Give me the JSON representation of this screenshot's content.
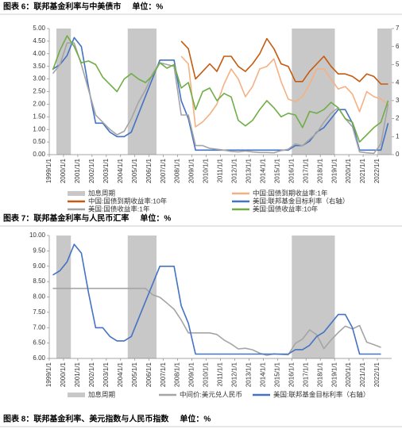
{
  "chart_data": [
    {
      "type": "line",
      "title": "图表 6：联邦基金利率与中美债市",
      "unit": "单位：%",
      "grid": false,
      "categories": [
        "1999/1/1",
        null,
        "2000/1/1",
        null,
        "2001/1/1",
        null,
        "2002/1/1",
        null,
        "2003/1/1",
        null,
        "2004/1/1",
        null,
        "2005/1/1",
        null,
        "2006/1/1",
        null,
        "2007/1/1",
        null,
        "2008/1/1",
        null,
        "2009/1/1",
        null,
        "2010/1/1",
        null,
        "2011/1/1",
        null,
        "2012/1/1",
        null,
        "2013/1/1",
        null,
        "2014/1/1",
        null,
        "2015/1/1",
        null,
        "2016/1/1",
        null,
        "2017/1/1",
        null,
        "2018/1/1",
        null,
        "2019/1/1",
        null,
        "2020/1/1",
        null,
        "2021/1/1",
        null,
        "2022/1/1",
        null
      ],
      "ylim": [
        0,
        5
      ],
      "yticks": [
        {
          "value": 0,
          "label": "0.00"
        },
        {
          "value": 0.5,
          "label": "0.50"
        },
        {
          "value": 1,
          "label": "1.00"
        },
        {
          "value": 1.5,
          "label": "1.50"
        },
        {
          "value": 2,
          "label": "2.00"
        },
        {
          "value": 2.5,
          "label": "2.50"
        },
        {
          "value": 3,
          "label": "3.00"
        },
        {
          "value": 3.5,
          "label": "3.50"
        },
        {
          "value": 4,
          "label": "4.00"
        },
        {
          "value": 4.5,
          "label": "4.50"
        },
        {
          "value": 5,
          "label": "5.00"
        }
      ],
      "y2lim": [
        0,
        7
      ],
      "y2ticks": [
        0,
        1,
        2,
        3,
        4,
        5,
        6,
        7
      ],
      "series": [
        {
          "name": "加息周期",
          "type": "bar",
          "color": "#c8c8c8",
          "values": [
            null,
            5,
            5,
            null,
            null,
            null,
            null,
            null,
            null,
            null,
            null,
            5,
            5,
            5,
            5,
            null,
            null,
            null,
            null,
            null,
            null,
            null,
            null,
            null,
            null,
            null,
            null,
            null,
            null,
            null,
            null,
            null,
            null,
            null,
            5,
            5,
            5,
            5,
            5,
            5,
            null,
            null,
            null,
            null,
            null,
            null,
            5,
            5
          ]
        },
        {
          "name": "中国:国债到期收益率:1年",
          "color": "#f4b183",
          "values": [
            null,
            null,
            null,
            null,
            null,
            null,
            null,
            null,
            null,
            null,
            null,
            null,
            null,
            null,
            null,
            null,
            null,
            null,
            3.9,
            3.6,
            1.1,
            1.3,
            1.6,
            2.0,
            2.8,
            3.4,
            3.0,
            2.3,
            2.7,
            3.4,
            3.5,
            3.8,
            2.9,
            2.2,
            2.1,
            2.3,
            2.8,
            3.4,
            3.4,
            3.0,
            2.6,
            2.7,
            2.4,
            1.7,
            2.5,
            2.3,
            2.2,
            2.0
          ]
        },
        {
          "name": "中国:国债到期收益率:10年",
          "color": "#c55a11",
          "values": [
            null,
            null,
            null,
            null,
            null,
            null,
            null,
            null,
            null,
            null,
            null,
            null,
            null,
            null,
            null,
            null,
            null,
            null,
            4.5,
            4.2,
            3.0,
            3.3,
            3.6,
            3.3,
            3.9,
            3.9,
            3.5,
            3.3,
            3.6,
            4.0,
            4.6,
            4.2,
            3.6,
            3.5,
            2.9,
            2.9,
            3.3,
            3.6,
            3.9,
            3.5,
            3.2,
            3.2,
            3.1,
            2.9,
            3.2,
            3.1,
            2.8,
            2.8
          ]
        },
        {
          "name": "美国:联邦基金目标利率（右轴）",
          "axis": "y2",
          "color": "#4472c4",
          "values": [
            4.75,
            5.0,
            5.5,
            6.5,
            6.0,
            3.75,
            1.75,
            1.75,
            1.25,
            1.0,
            1.0,
            1.25,
            2.25,
            3.25,
            4.25,
            5.25,
            5.25,
            5.25,
            3.0,
            2.0,
            0.25,
            0.25,
            0.25,
            0.25,
            0.25,
            0.25,
            0.25,
            0.25,
            0.25,
            0.25,
            0.25,
            0.25,
            0.25,
            0.25,
            0.5,
            0.5,
            0.75,
            1.25,
            1.5,
            2.0,
            2.5,
            2.5,
            1.75,
            0.25,
            0.25,
            0.25,
            0.25,
            1.75
          ]
        },
        {
          "name": "美国:国债收益率:1年",
          "axis": "y2",
          "color": "#a5a5a5",
          "values": [
            4.5,
            5.0,
            6.2,
            6.2,
            5.0,
            3.6,
            2.2,
            1.8,
            1.4,
            1.1,
            1.3,
            2.0,
            2.9,
            3.6,
            4.5,
            5.1,
            5.0,
            4.9,
            2.2,
            2.2,
            0.5,
            0.5,
            0.35,
            0.3,
            0.25,
            0.18,
            0.15,
            0.2,
            0.15,
            0.12,
            0.12,
            0.1,
            0.22,
            0.3,
            0.6,
            0.5,
            0.85,
            1.2,
            1.8,
            2.3,
            2.6,
            2.0,
            1.55,
            0.15,
            0.1,
            0.07,
            0.6,
            2.8
          ]
        },
        {
          "name": "美国:国债收益率:10年",
          "axis": "y2",
          "color": "#70ad47",
          "values": [
            4.7,
            5.8,
            6.6,
            6.0,
            5.1,
            5.2,
            5.0,
            4.3,
            3.9,
            3.5,
            4.2,
            4.5,
            4.2,
            4.0,
            4.4,
            5.1,
            4.8,
            5.0,
            3.7,
            4.0,
            2.5,
            3.5,
            3.7,
            3.0,
            3.4,
            3.2,
            1.9,
            1.6,
            1.9,
            2.5,
            3.0,
            2.6,
            2.1,
            2.3,
            2.2,
            1.5,
            2.4,
            2.3,
            2.5,
            2.9,
            2.6,
            2.0,
            1.8,
            0.7,
            1.1,
            1.5,
            1.8,
            3.0
          ]
        }
      ]
    },
    {
      "type": "line",
      "title": "图表 7：联邦基金利率与人民币汇率",
      "unit": "单位：%",
      "grid": false,
      "categories": [
        "1999/1/1",
        null,
        "2000/1/1",
        null,
        "2001/1/1",
        null,
        "2002/1/1",
        null,
        "2003/1/1",
        null,
        "2004/1/1",
        null,
        "2005/1/1",
        null,
        "2006/1/1",
        null,
        "2007/1/1",
        null,
        "2008/1/1",
        null,
        "2009/1/1",
        null,
        "2010/1/1",
        null,
        "2011/1/1",
        null,
        "2012/1/1",
        null,
        "2013/1/1",
        null,
        "2014/1/1",
        null,
        "2015/1/1",
        null,
        "2016/1/1",
        null,
        "2017/1/1",
        null,
        "2018/1/1",
        null,
        "2019/1/1",
        null,
        "2020/1/1",
        null,
        "2021/1/1",
        null,
        "2022/1/1",
        null
      ],
      "ylim": [
        6,
        10
      ],
      "yticks": [
        {
          "value": 6,
          "label": "6.00"
        },
        {
          "value": 6.5,
          "label": "6.50"
        },
        {
          "value": 7,
          "label": "7.00"
        },
        {
          "value": 7.5,
          "label": "7.50"
        },
        {
          "value": 8,
          "label": "8.00"
        },
        {
          "value": 8.5,
          "label": "8.50"
        },
        {
          "value": 9,
          "label": "9.00"
        },
        {
          "value": 9.5,
          "label": "9.50"
        },
        {
          "value": 10,
          "label": "10.00"
        }
      ],
      "y2lim": [
        0,
        7
      ],
      "series": [
        {
          "name": "加息周期",
          "type": "bar",
          "color": "#c8c8c8",
          "values": [
            null,
            10,
            10,
            null,
            null,
            null,
            null,
            null,
            null,
            null,
            null,
            10,
            10,
            10,
            10,
            null,
            null,
            null,
            null,
            null,
            null,
            null,
            null,
            null,
            null,
            null,
            null,
            null,
            null,
            null,
            null,
            null,
            null,
            null,
            10,
            10,
            10,
            10,
            10,
            10,
            null,
            null,
            null,
            null,
            null,
            null,
            null,
            null
          ]
        },
        {
          "name": "中间价:美元兑人民币",
          "color": "#a5a5a5",
          "values": [
            8.28,
            8.28,
            8.28,
            8.28,
            8.28,
            8.28,
            8.28,
            8.28,
            8.28,
            8.28,
            8.28,
            8.28,
            8.28,
            8.28,
            8.07,
            7.99,
            7.8,
            7.6,
            7.25,
            6.83,
            6.83,
            6.83,
            6.83,
            6.78,
            6.6,
            6.47,
            6.31,
            6.33,
            6.28,
            6.17,
            6.1,
            6.15,
            6.13,
            6.12,
            6.49,
            6.63,
            6.93,
            6.77,
            6.32,
            6.6,
            6.84,
            7.05,
            6.96,
            7.07,
            6.53,
            6.45,
            6.36,
            null
          ]
        },
        {
          "name": "美国:联邦基金目标利率（右轴）",
          "axis": "y2",
          "color": "#4472c4",
          "values": [
            4.75,
            5.0,
            5.5,
            6.5,
            6.0,
            3.75,
            1.75,
            1.75,
            1.25,
            1.0,
            1.0,
            1.25,
            2.25,
            3.25,
            4.25,
            5.25,
            5.25,
            5.25,
            3.0,
            2.0,
            0.25,
            0.25,
            0.25,
            0.25,
            0.25,
            0.25,
            0.25,
            0.25,
            0.25,
            0.25,
            0.25,
            0.25,
            0.25,
            0.25,
            0.5,
            0.5,
            0.75,
            1.25,
            1.5,
            2.0,
            2.5,
            2.5,
            1.75,
            0.25,
            0.25,
            0.25,
            0.25,
            null
          ]
        }
      ]
    }
  ],
  "next_header": {
    "title": "图表 8：联邦基金利率、美元指数与人民币指数",
    "unit": "单位：%"
  }
}
